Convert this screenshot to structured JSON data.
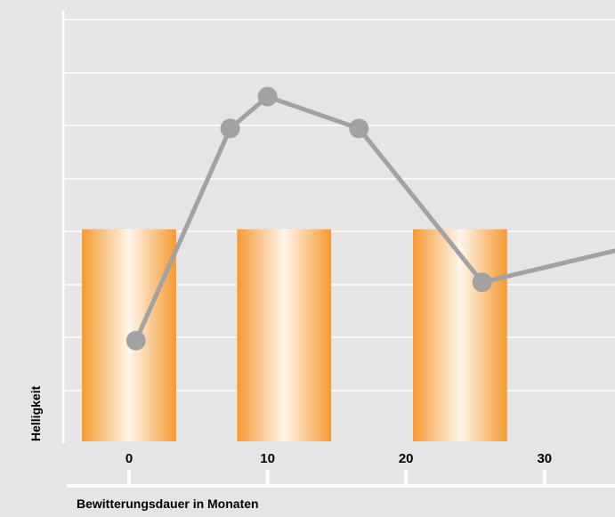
{
  "chart_data": {
    "type": "bar",
    "xlabel": "Bewitterungsdauer in Monaten",
    "ylabel": "Helligkeit",
    "x_ticks": [
      0,
      10,
      20,
      30
    ],
    "xlim": [
      -4.5,
      35.2
    ],
    "ylim": [
      0,
      8
    ],
    "grid": true,
    "bar_series": {
      "x": [
        0,
        11.2,
        23.9
      ],
      "width": 6.8,
      "values": [
        4.0,
        4.0,
        4.0
      ]
    },
    "line_series": {
      "x": [
        0.5,
        7.3,
        10.0,
        16.6,
        25.5
      ],
      "values": [
        1.9,
        5.9,
        6.5,
        5.9,
        3.0
      ],
      "continues_to": {
        "x": 35.2,
        "value": 3.6
      }
    },
    "colors": {
      "background": "#e5e5e5",
      "grid": "#ffffff",
      "bar_edge": "#f59a30",
      "bar_center": "#fff6ea",
      "line": "#a2a2a2",
      "marker": "#a2a2a2"
    }
  }
}
